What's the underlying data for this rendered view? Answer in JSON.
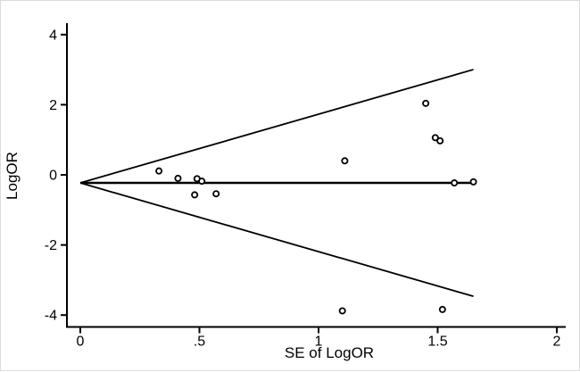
{
  "figure": {
    "background": "#ffffff",
    "border_color": "#dcdcdc",
    "line_color": "#000000",
    "marker_fill": "#ffffff",
    "marker_stroke": "#000000"
  },
  "chart_data": {
    "type": "scatter",
    "title": "",
    "xlabel": "SE of LogOR",
    "ylabel": "LogOR",
    "xlim": [
      0,
      2
    ],
    "ylim": [
      -4.35,
      4.1
    ],
    "grid": false,
    "legend": false,
    "x_ticks": [
      {
        "value": 0,
        "label": "0"
      },
      {
        "value": 0.5,
        "label": ".5"
      },
      {
        "value": 1,
        "label": "1"
      },
      {
        "value": 1.5,
        "label": "1.5"
      },
      {
        "value": 2,
        "label": "2"
      }
    ],
    "y_ticks": [
      {
        "value": 4,
        "label": "4"
      },
      {
        "value": 2,
        "label": "2"
      },
      {
        "value": 0,
        "label": "0"
      },
      {
        "value": -2,
        "label": "-2"
      },
      {
        "value": -4,
        "label": "-4"
      }
    ],
    "funnel": {
      "pooled_logor": -0.23,
      "ci_multiplier": 1.96,
      "se_max": 1.65
    },
    "points": [
      {
        "se": 0.33,
        "logor": 0.11
      },
      {
        "se": 0.41,
        "logor": -0.1
      },
      {
        "se": 0.49,
        "logor": -0.11
      },
      {
        "se": 0.51,
        "logor": -0.18
      },
      {
        "se": 0.48,
        "logor": -0.57
      },
      {
        "se": 0.57,
        "logor": -0.54
      },
      {
        "se": 1.11,
        "logor": 0.4
      },
      {
        "se": 1.45,
        "logor": 2.04
      },
      {
        "se": 1.49,
        "logor": 1.06
      },
      {
        "se": 1.51,
        "logor": 0.97
      },
      {
        "se": 1.57,
        "logor": -0.23
      },
      {
        "se": 1.65,
        "logor": -0.2
      },
      {
        "se": 1.1,
        "logor": -3.88
      },
      {
        "se": 1.52,
        "logor": -3.84
      }
    ]
  }
}
